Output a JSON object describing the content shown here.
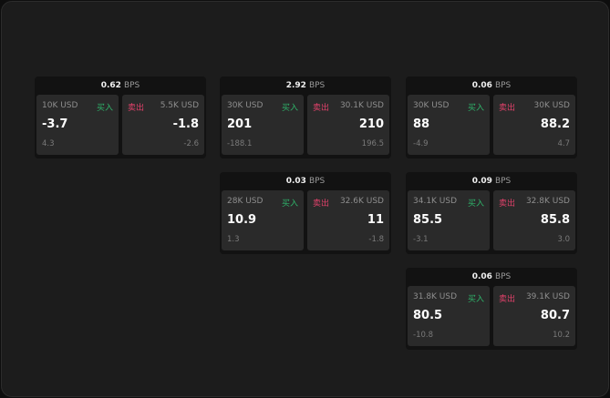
{
  "labels": {
    "unit": "BPS",
    "buy": "买入",
    "sell": "卖出"
  },
  "colors": {
    "buy": "#2fb36a",
    "sell": "#e0416a"
  },
  "panels": [
    {
      "spread": "0.62",
      "bid": {
        "qty": "10K USD",
        "price": "-3.7",
        "change": "4.3"
      },
      "ask": {
        "qty": "5.5K USD",
        "price": "-1.8",
        "change": "-2.6"
      }
    },
    {
      "spread": "2.92",
      "bid": {
        "qty": "30K USD",
        "price": "201",
        "change": "-188.1"
      },
      "ask": {
        "qty": "30.1K USD",
        "price": "210",
        "change": "196.5"
      }
    },
    {
      "spread": "0.06",
      "bid": {
        "qty": "30K USD",
        "price": "88",
        "change": "-4.9"
      },
      "ask": {
        "qty": "30K USD",
        "price": "88.2",
        "change": "4.7"
      }
    },
    {
      "spread": "0.03",
      "bid": {
        "qty": "28K USD",
        "price": "10.9",
        "change": "1.3"
      },
      "ask": {
        "qty": "32.6K USD",
        "price": "11",
        "change": "-1.8"
      }
    },
    {
      "spread": "0.09",
      "bid": {
        "qty": "34.1K USD",
        "price": "85.5",
        "change": "-3.1"
      },
      "ask": {
        "qty": "32.8K USD",
        "price": "85.8",
        "change": "3.0"
      }
    },
    {
      "spread": "0.06",
      "bid": {
        "qty": "31.8K USD",
        "price": "80.5",
        "change": "-10.8"
      },
      "ask": {
        "qty": "39.1K USD",
        "price": "80.7",
        "change": "10.2"
      }
    }
  ]
}
